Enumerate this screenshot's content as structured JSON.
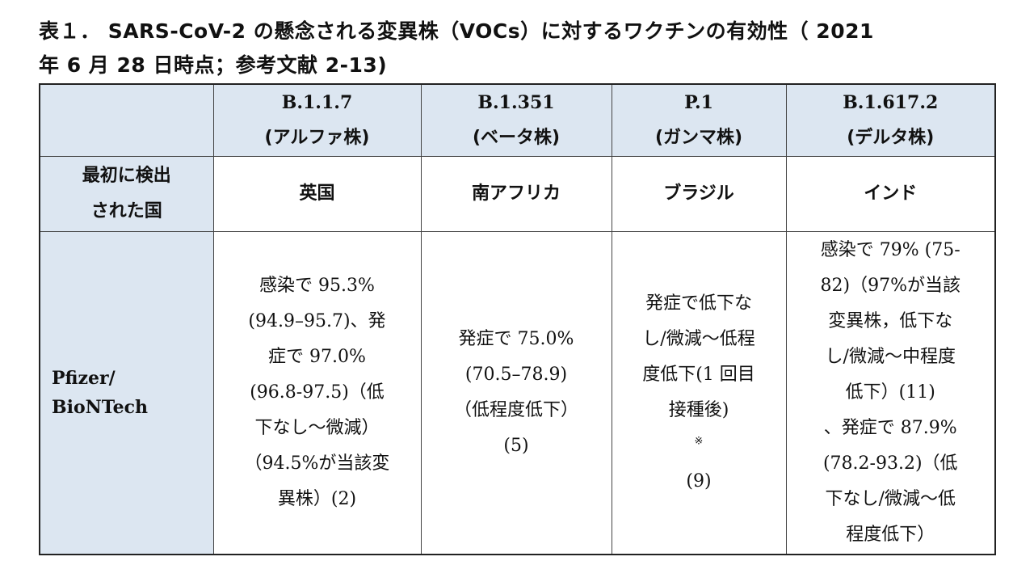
{
  "caption": {
    "line1": "表１． SARS-CoV-2 の懸念される変異株（VOCs）に対するワクチンの有効性（ 2021",
    "line2": "年 6 月 28 日時点；参考文献 2-13)"
  },
  "table": {
    "columns": [
      {
        "code": "B.1.1.7",
        "alias": "(アルファ株)"
      },
      {
        "code": "B.1.351",
        "alias": "(ベータ株)"
      },
      {
        "code": "P.1",
        "alias": "(ガンマ株)"
      },
      {
        "code": "B.1.617.2",
        "alias": "(デルタ株)"
      }
    ],
    "country_row": {
      "label_lines": [
        "最初に検出",
        "された国"
      ],
      "values": [
        "英国",
        "南アフリカ",
        "ブラジル",
        "インド"
      ]
    },
    "vaccine_row": {
      "label_lines": [
        "Pfizer/",
        "BioNTech"
      ],
      "cells": [
        [
          "感染で 95.3%",
          "(94.9–95.7)、発",
          "症で 97.0%",
          "(96.8-97.5)（低",
          "下なし～微減）",
          "（94.5%が当該変",
          "異株）(2)"
        ],
        [
          "発症で 75.0%",
          "(70.5–78.9)",
          "（低程度低下）",
          "(5)"
        ],
        [
          "発症で低下な",
          "し/微減～低程",
          "度低下(1 回目",
          "接種後)"
        ],
        [
          "感染で 79% (75-",
          "82)（97%が当該",
          "変異株，低下な",
          "し/微減～中程度",
          "低下）(11)",
          "、発症で 87.9%",
          "(78.2-93.2)（低",
          "下なし/微減～低",
          "程度低下）"
        ]
      ],
      "p1_note_mark": "※",
      "p1_ref": "(9)"
    }
  }
}
